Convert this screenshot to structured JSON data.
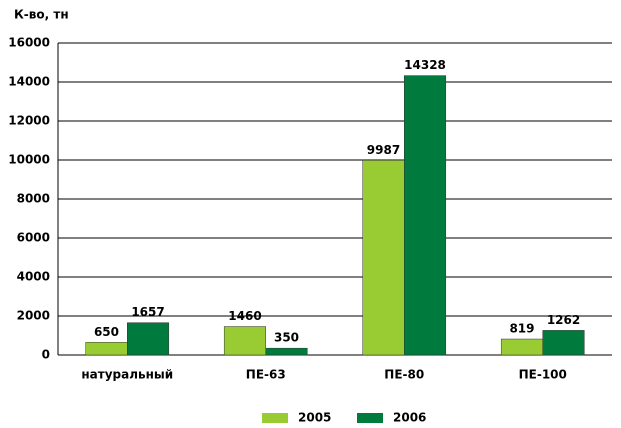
{
  "chart_data": {
    "type": "bar",
    "y_label": "К-во, тн",
    "categories": [
      "натуральный",
      "ПЕ-63",
      "ПЕ-80",
      "ПЕ-100"
    ],
    "series": [
      {
        "name": "2005",
        "color": "#99cc33",
        "values": [
          650,
          1460,
          9987,
          819
        ]
      },
      {
        "name": "2006",
        "color": "#007a3d",
        "values": [
          1657,
          350,
          14328,
          1262
        ]
      }
    ],
    "ylim": [
      0,
      16000
    ],
    "yticks": [
      0,
      2000,
      4000,
      6000,
      8000,
      10000,
      12000,
      14000,
      16000
    ],
    "grid": true,
    "legend": "bottom"
  }
}
